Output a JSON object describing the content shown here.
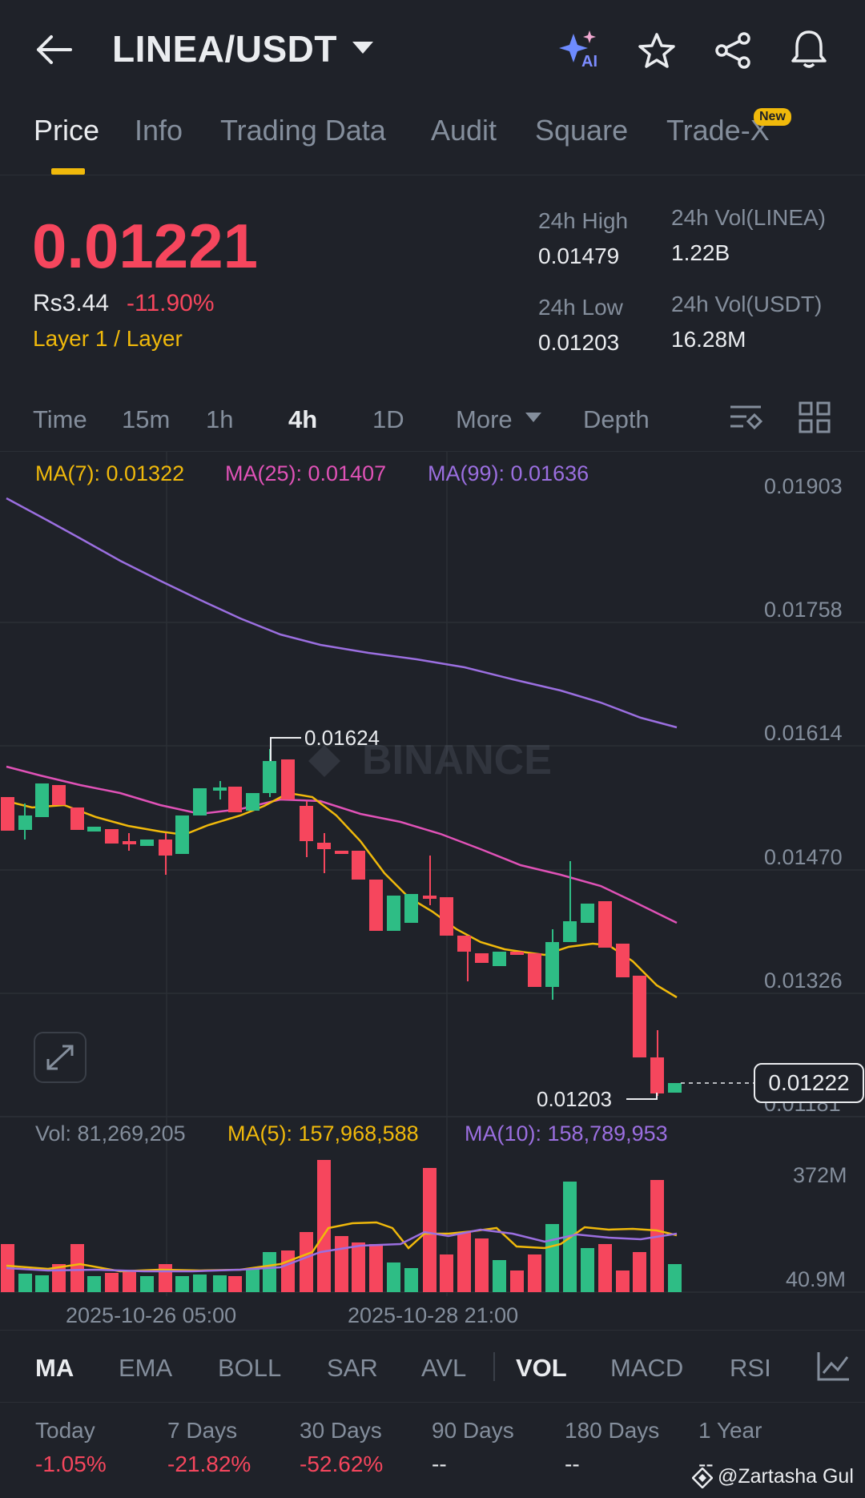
{
  "header": {
    "pair": "LINEA/USDT",
    "ai_label": "AI"
  },
  "tabs": [
    {
      "label": "Price"
    },
    {
      "label": "Info"
    },
    {
      "label": "Trading Data"
    },
    {
      "label": "Audit"
    },
    {
      "label": "Square"
    },
    {
      "label": "Trade-X"
    }
  ],
  "new_badge": "New",
  "price": {
    "last": "0.01221",
    "fiat": "Rs3.44",
    "change": "-11.90%",
    "category": "Layer 1 / Layer"
  },
  "stats": {
    "high_label": "24h High",
    "high_value": "0.01479",
    "low_label": "24h Low",
    "low_value": "0.01203",
    "vol_base_label": "24h Vol(LINEA)",
    "vol_base_value": "1.22B",
    "vol_quote_label": "24h Vol(USDT)",
    "vol_quote_value": "16.28M"
  },
  "timeframes": [
    "Time",
    "15m",
    "1h",
    "4h",
    "1D",
    "More",
    "Depth"
  ],
  "active_timeframe": "4h",
  "chart": {
    "ma7": "MA(7): 0.01322",
    "ma25": "MA(25): 0.01407",
    "ma99": "MA(99): 0.01636",
    "y_ticks": [
      "0.01903",
      "0.01758",
      "0.01614",
      "0.01470",
      "0.01326",
      "0.01181"
    ],
    "high_marker": "0.01624",
    "low_marker": "0.01203",
    "current_price_tag": "0.01222",
    "watermark": "BINANCE",
    "vol": "Vol: 81,269,205",
    "vol_ma5": "MA(5): 157,968,588",
    "vol_ma10": "MA(10): 158,789,953",
    "vol_ticks": [
      "372M",
      "40.9M"
    ],
    "x_ticks": [
      "2025-10-26 05:00",
      "2025-10-28 21:00"
    ]
  },
  "indicators": [
    "MA",
    "EMA",
    "BOLL",
    "SAR",
    "AVL",
    "VOL",
    "MACD",
    "RSI"
  ],
  "performance": [
    {
      "label": "Today",
      "value": "-1.05%"
    },
    {
      "label": "7 Days",
      "value": "-21.82%"
    },
    {
      "label": "30 Days",
      "value": "-52.62%"
    },
    {
      "label": "90 Days",
      "value": "--"
    },
    {
      "label": "180 Days",
      "value": "--"
    },
    {
      "label": "1 Year",
      "value": "--"
    }
  ],
  "credit": "@Zartasha Gul",
  "colors": {
    "up": "#2ebd85",
    "down": "#f6465d",
    "accent": "#f0b90b",
    "ma7": "#f0b90b",
    "ma25": "#e052b7",
    "ma99": "#9b6fe0"
  }
}
